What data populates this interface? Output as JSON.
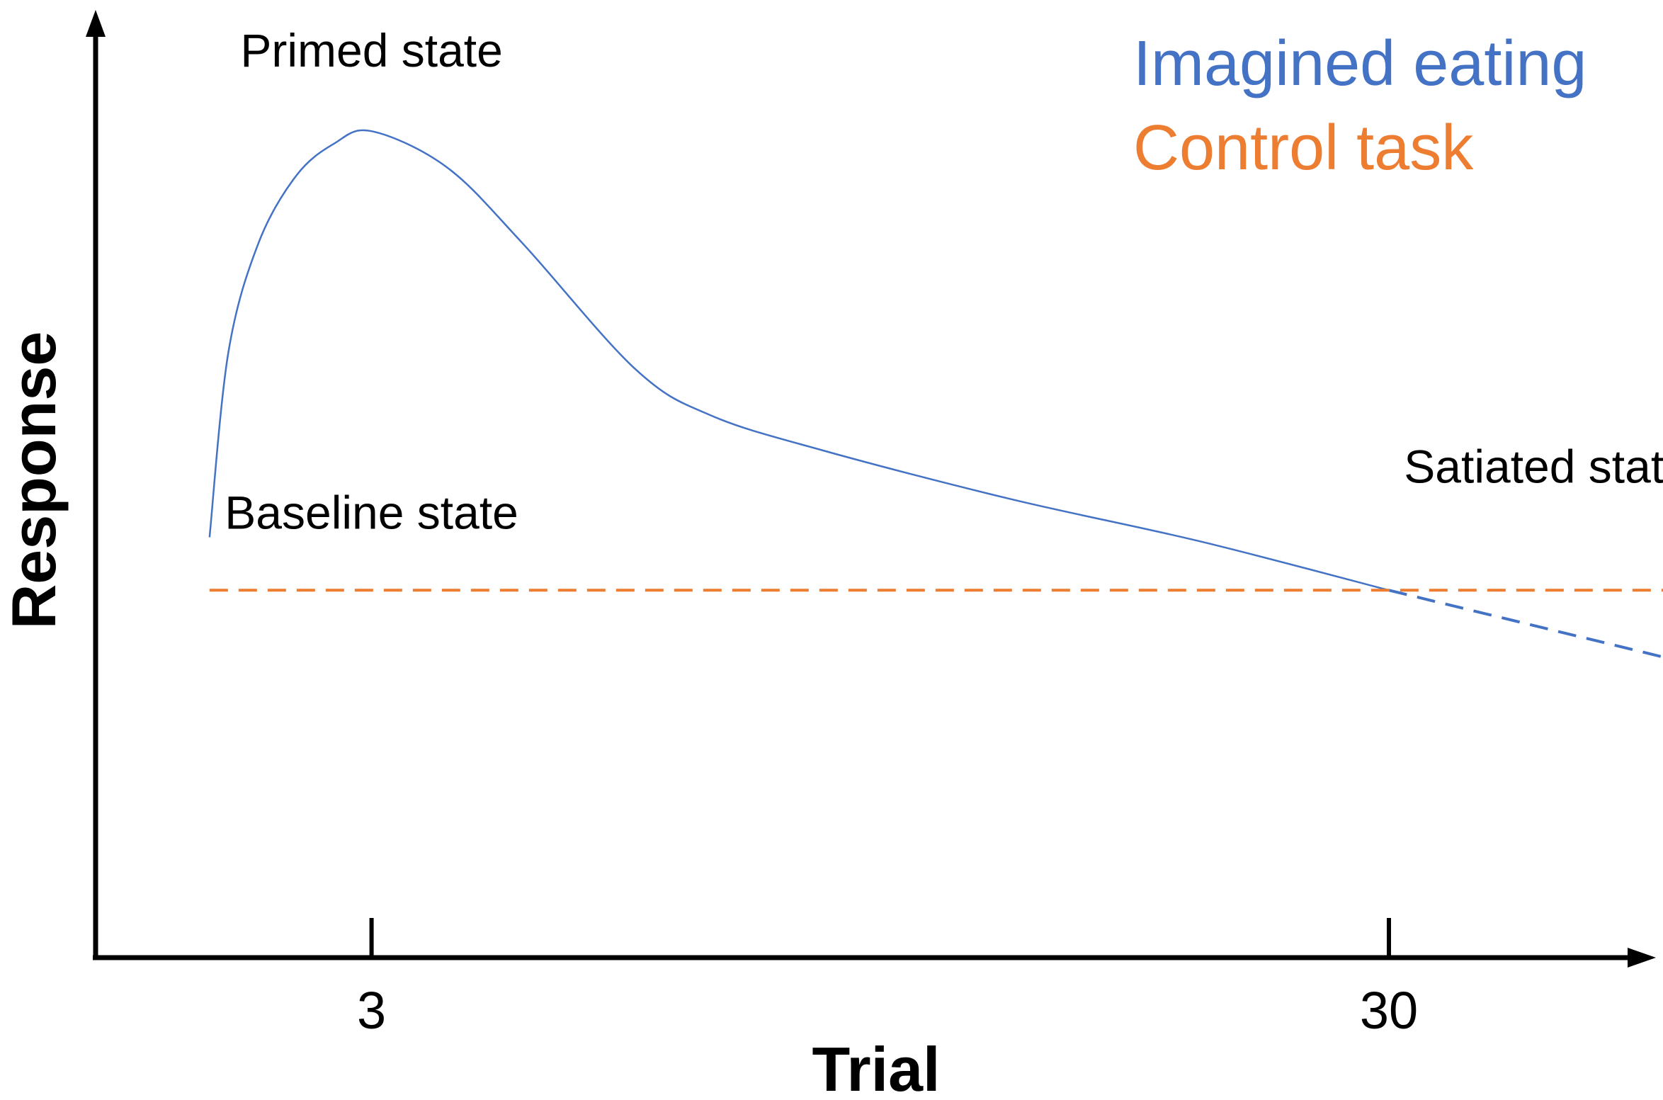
{
  "chart_data": {
    "type": "line",
    "title": "",
    "xlabel": "Trial",
    "ylabel": "Response",
    "x_ticks": [
      {
        "value": 3,
        "label": "3"
      },
      {
        "value": 30,
        "label": "30"
      }
    ],
    "xlim": [
      -1.3,
      39.9
    ],
    "ylim": [
      0,
      1
    ],
    "grid": false,
    "y_tick_labels": false,
    "legend_position": "top-right",
    "legend": [
      {
        "label": "Imagined eating",
        "color": "#4472c4"
      },
      {
        "label": "Control task",
        "color": "#ed7d31"
      }
    ],
    "series": [
      {
        "name": "Imagined eating",
        "color": "#4472c4",
        "style": "solid",
        "points": [
          [
            -1.3,
            0.5
          ],
          [
            -0.8,
            0.72
          ],
          [
            0.0,
            0.85
          ],
          [
            1.0,
            0.93
          ],
          [
            2.0,
            0.968
          ],
          [
            3.0,
            0.983
          ],
          [
            5.0,
            0.94
          ],
          [
            7.0,
            0.85
          ],
          [
            10.0,
            0.7
          ],
          [
            12.0,
            0.645
          ],
          [
            15.0,
            0.603
          ],
          [
            20.0,
            0.545
          ],
          [
            25.0,
            0.495
          ],
          [
            30.0,
            0.437
          ]
        ]
      },
      {
        "name": "Imagined eating",
        "color": "#4472c4",
        "style": "dashed",
        "points": [
          [
            30.0,
            0.437
          ],
          [
            39.8,
            0.33
          ]
        ]
      },
      {
        "name": "Control task",
        "color": "#ed7d31",
        "style": "dashed",
        "points": [
          [
            -1.3,
            0.437
          ],
          [
            39.6,
            0.437
          ]
        ]
      }
    ],
    "annotations": [
      {
        "text": "Primed state",
        "x": 3.0,
        "y": 1.06
      },
      {
        "text": "Baseline state",
        "x": 3.0,
        "y": 0.51
      },
      {
        "text": "Satiated state",
        "x": 30.4,
        "y": 0.565
      }
    ]
  }
}
